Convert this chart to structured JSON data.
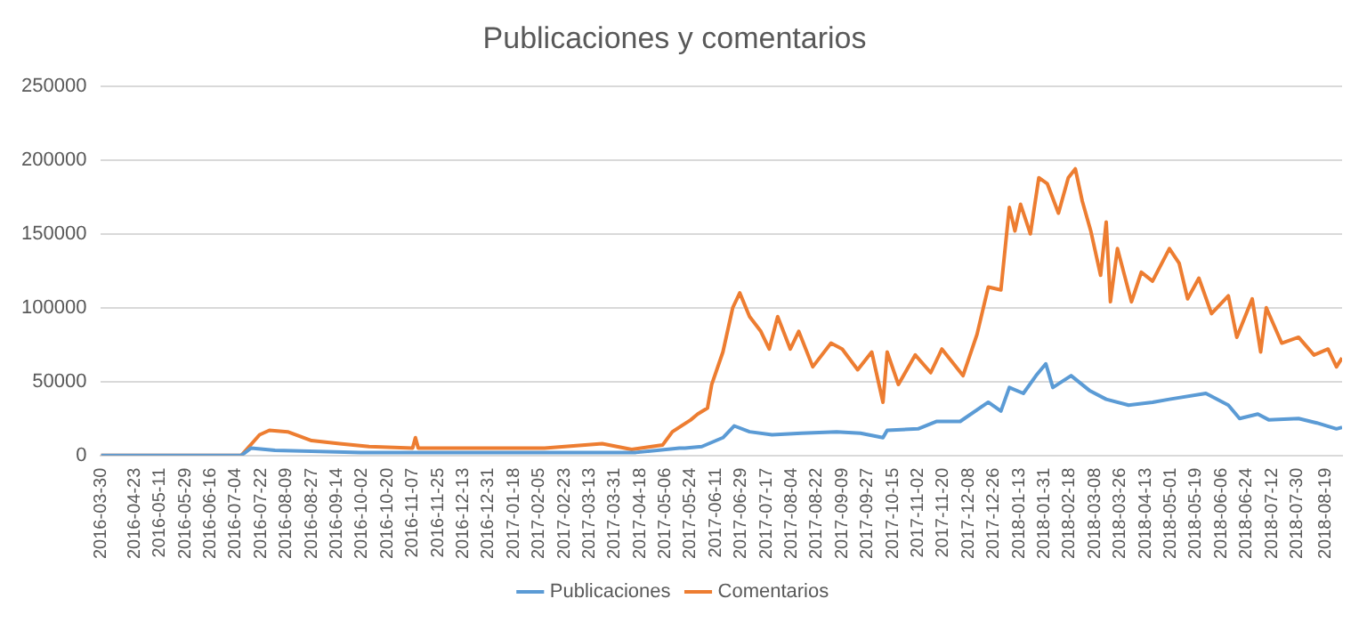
{
  "chart_data": {
    "type": "line",
    "title": "Publicaciones y comentarios",
    "legend": "bottom",
    "grid": "y",
    "marker": "none",
    "line_style": "solid",
    "xlim": [
      "2016-03-30",
      "2018-08-31"
    ],
    "ylim": [
      0,
      250000
    ],
    "yticks": [
      0,
      50000,
      100000,
      150000,
      200000,
      250000
    ],
    "xticks": [
      "2016-03-30",
      "2016-04-23",
      "2016-05-11",
      "2016-05-29",
      "2016-06-16",
      "2016-07-04",
      "2016-07-22",
      "2016-08-09",
      "2016-08-27",
      "2016-09-14",
      "2016-10-02",
      "2016-10-20",
      "2016-11-07",
      "2016-11-25",
      "2016-12-13",
      "2016-12-31",
      "2017-01-18",
      "2017-02-05",
      "2017-02-23",
      "2017-03-13",
      "2017-03-31",
      "2017-04-18",
      "2017-05-06",
      "2017-05-24",
      "2017-06-11",
      "2017-06-29",
      "2017-07-17",
      "2017-08-04",
      "2017-08-22",
      "2017-09-09",
      "2017-09-27",
      "2017-10-15",
      "2017-11-02",
      "2017-11-20",
      "2017-12-08",
      "2017-12-26",
      "2018-01-13",
      "2018-01-31",
      "2018-02-18",
      "2018-03-08",
      "2018-03-26",
      "2018-04-13",
      "2018-05-01",
      "2018-05-19",
      "2018-06-06",
      "2018-06-24",
      "2018-07-12",
      "2018-07-30",
      "2018-08-19"
    ],
    "series": [
      {
        "name": "Publicaciones",
        "color": "#5b9bd5",
        "x": [
          "2016-03-30",
          "2016-07-08",
          "2016-07-15",
          "2016-08-01",
          "2016-10-01",
          "2017-01-15",
          "2017-04-15",
          "2017-05-16",
          "2017-05-20",
          "2017-06-01",
          "2017-06-16",
          "2017-06-24",
          "2017-07-05",
          "2017-07-21",
          "2017-08-11",
          "2017-09-05",
          "2017-09-22",
          "2017-10-08",
          "2017-10-11",
          "2017-11-02",
          "2017-11-15",
          "2017-12-02",
          "2017-12-22",
          "2017-12-31",
          "2018-01-06",
          "2018-01-16",
          "2018-01-25",
          "2018-02-01",
          "2018-02-06",
          "2018-02-19",
          "2018-03-04",
          "2018-03-16",
          "2018-04-01",
          "2018-04-18",
          "2018-04-30",
          "2018-05-26",
          "2018-06-11",
          "2018-06-19",
          "2018-07-02",
          "2018-07-10",
          "2018-07-31",
          "2018-08-13",
          "2018-08-27",
          "2018-08-31"
        ],
        "values": [
          0,
          0,
          5000,
          3500,
          2000,
          2000,
          2000,
          5000,
          5000,
          6000,
          12000,
          20000,
          16000,
          14000,
          15000,
          16000,
          15000,
          12000,
          17000,
          18000,
          23000,
          23000,
          36000,
          30000,
          46000,
          42000,
          54000,
          62000,
          46000,
          54000,
          44000,
          38000,
          34000,
          36000,
          38000,
          42000,
          34000,
          25000,
          28000,
          24000,
          25000,
          22000,
          18000,
          19000
        ]
      },
      {
        "name": "Comentarios",
        "color": "#ed7d31",
        "x": [
          "2016-03-30",
          "2016-07-08",
          "2016-07-21",
          "2016-07-28",
          "2016-08-10",
          "2016-08-27",
          "2016-09-16",
          "2016-10-07",
          "2016-11-07",
          "2016-11-09",
          "2016-11-11",
          "2016-12-21",
          "2017-02-09",
          "2017-03-22",
          "2017-04-12",
          "2017-05-04",
          "2017-05-11",
          "2017-05-24",
          "2017-05-29",
          "2017-06-05",
          "2017-06-08",
          "2017-06-16",
          "2017-06-23",
          "2017-06-28",
          "2017-07-05",
          "2017-07-13",
          "2017-07-19",
          "2017-07-25",
          "2017-08-03",
          "2017-08-09",
          "2017-08-19",
          "2017-09-01",
          "2017-09-09",
          "2017-09-20",
          "2017-09-30",
          "2017-10-08",
          "2017-10-11",
          "2017-10-19",
          "2017-10-31",
          "2017-11-11",
          "2017-11-19",
          "2017-12-04",
          "2017-12-14",
          "2017-12-22",
          "2017-12-31",
          "2018-01-06",
          "2018-01-10",
          "2018-01-14",
          "2018-01-21",
          "2018-01-27",
          "2018-02-02",
          "2018-02-10",
          "2018-02-17",
          "2018-02-22",
          "2018-02-27",
          "2018-03-05",
          "2018-03-12",
          "2018-03-16",
          "2018-03-19",
          "2018-03-24",
          "2018-04-03",
          "2018-04-10",
          "2018-04-18",
          "2018-04-30",
          "2018-05-07",
          "2018-05-13",
          "2018-05-21",
          "2018-05-30",
          "2018-06-11",
          "2018-06-17",
          "2018-06-28",
          "2018-07-04",
          "2018-07-08",
          "2018-07-19",
          "2018-07-31",
          "2018-08-11",
          "2018-08-21",
          "2018-08-27",
          "2018-08-31"
        ],
        "values": [
          0,
          0,
          14000,
          17000,
          16000,
          10000,
          8000,
          6000,
          5000,
          12000,
          5000,
          5000,
          5000,
          8000,
          4000,
          7000,
          16000,
          24000,
          28000,
          32000,
          48000,
          70000,
          100000,
          110000,
          94000,
          84000,
          72000,
          94000,
          72000,
          84000,
          60000,
          76000,
          72000,
          58000,
          70000,
          36000,
          70000,
          48000,
          68000,
          56000,
          72000,
          54000,
          82000,
          114000,
          112000,
          168000,
          152000,
          170000,
          150000,
          188000,
          184000,
          164000,
          188000,
          194000,
          172000,
          152000,
          122000,
          158000,
          104000,
          140000,
          104000,
          124000,
          118000,
          140000,
          130000,
          106000,
          120000,
          96000,
          108000,
          80000,
          106000,
          70000,
          100000,
          76000,
          80000,
          68000,
          72000,
          60000,
          66000
        ]
      }
    ]
  }
}
